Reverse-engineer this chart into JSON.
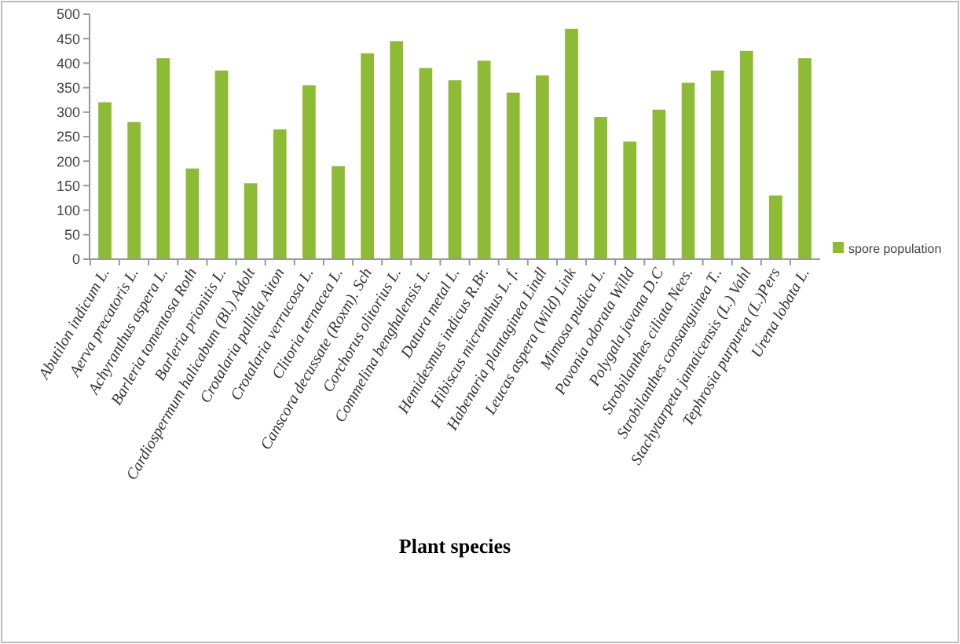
{
  "chart_data": {
    "type": "bar",
    "xlabel": "Plant species",
    "categories": [
      "Abutilon indicum  L.",
      "Aerva precatoris  L.",
      "Achyranthus aspera  L.",
      "Barleria tomentosa Roth",
      "Barleria prionitis L.",
      "Cardiospermum halicabum (Bl.) Adolt",
      "Crotalaria pallida Aiton",
      "Crotalaria verrucosa  L.",
      "Clitoria ternacea  L.",
      "Canscora decussate (Roxm). Sch",
      "Corchorus olitorius  L.",
      "Commelina benghalensis  L.",
      "Datura metal L.",
      "Hemidesmus indicus  R.Br.",
      "Hibiscus micranthus  L. f.",
      "Habenaria plantaginea  Lindl",
      "Leucas aspera (Wild) Link",
      "Mimosa pudica  L.",
      "Pavonia odorata  Willd",
      "Polygala javana  D.C",
      "Strobilanthes ciliata  Nees.",
      "Strobilanthes consanguinea  T..",
      "Stachytarpeta jamaicensis (L.) Vahl",
      "Tephrosia purpurea (L.)Pers",
      "Urena lobata L."
    ],
    "series": [
      {
        "name": "spore population",
        "color": "#8dbb35",
        "values": [
          320,
          280,
          410,
          185,
          385,
          155,
          265,
          355,
          190,
          420,
          445,
          390,
          365,
          405,
          340,
          375,
          470,
          290,
          240,
          305,
          360,
          385,
          425,
          130,
          410
        ]
      }
    ],
    "ylim": [
      0,
      500
    ],
    "yticks": [
      0,
      50,
      100,
      150,
      200,
      250,
      300,
      350,
      400,
      450,
      500
    ],
    "legend": "right"
  }
}
